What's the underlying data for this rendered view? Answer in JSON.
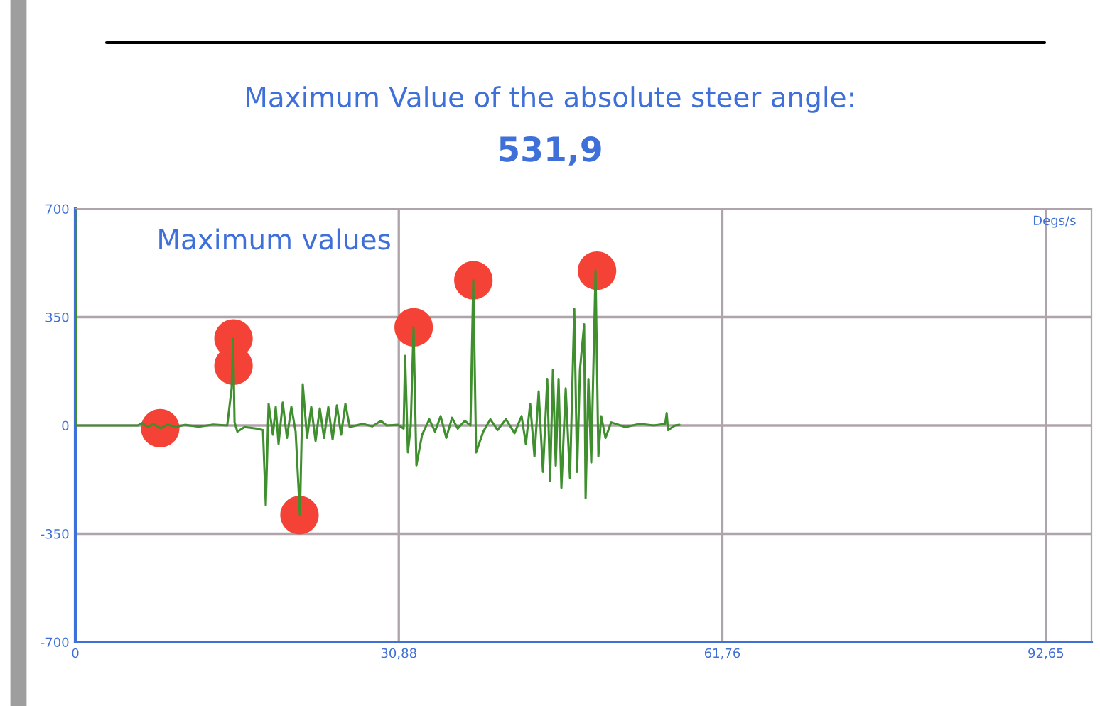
{
  "chart_data": {
    "type": "line",
    "title": "Maximum Value of the absolute steer angle:",
    "subtitle": "531,9",
    "ylabel": "Degs/s",
    "annotations": [
      "Maximum values"
    ],
    "xlim": [
      0,
      97
    ],
    "ylim": [
      -700,
      700
    ],
    "xticks": [
      {
        "value": 0,
        "label": "0"
      },
      {
        "value": 30.88,
        "label": "30,88"
      },
      {
        "value": 61.76,
        "label": "61,76"
      },
      {
        "value": 92.65,
        "label": "92,65"
      }
    ],
    "yticks": [
      -700,
      -350,
      0,
      350,
      700
    ],
    "grid": true,
    "legend": false,
    "series": [
      {
        "color": "#3f8f2f",
        "line_style": "solid",
        "marker": "none",
        "x": [
          0,
          0.07,
          5.97,
          6.38,
          6.92,
          7.46,
          8.14,
          8.82,
          9.63,
          10.45,
          11.8,
          13.16,
          14.5,
          14.92,
          15.06,
          15.2,
          15.47,
          16.15,
          17.23,
          17.91,
          18.18,
          18.45,
          18.86,
          19.13,
          19.4,
          19.8,
          20.2,
          20.62,
          21.03,
          21.44,
          21.71,
          22.12,
          22.52,
          22.93,
          23.34,
          23.74,
          24.15,
          24.56,
          24.97,
          25.37,
          25.78,
          26.19,
          27.41,
          28.36,
          29.17,
          29.72,
          30.8,
          31.34,
          31.48,
          31.75,
          32.02,
          32.29,
          32.56,
          33.1,
          33.79,
          34.33,
          34.87,
          35.41,
          35.96,
          36.5,
          37.18,
          37.72,
          37.99,
          38.26,
          38.94,
          39.62,
          40.3,
          41.11,
          41.93,
          42.6,
          43.01,
          43.42,
          43.83,
          44.23,
          44.64,
          45.05,
          45.32,
          45.59,
          45.86,
          46.13,
          46.4,
          46.81,
          47.22,
          47.63,
          47.9,
          48.17,
          48.57,
          48.71,
          48.98,
          49.25,
          49.66,
          49.93,
          50.2,
          50.61,
          51.15,
          52.51,
          53.87,
          55.22,
          56.31,
          56.45,
          56.58,
          57.26,
          57.67
        ],
        "values": [
          700,
          0,
          0,
          8,
          -5,
          5,
          -9,
          3,
          -5,
          2,
          -4,
          3,
          0,
          120,
          281,
          10,
          -20,
          -5,
          -10,
          -15,
          -258,
          70,
          -30,
          60,
          -60,
          74,
          -40,
          60,
          -20,
          -290,
          133,
          -40,
          60,
          -50,
          55,
          -40,
          60,
          -45,
          65,
          -30,
          70,
          -5,
          5,
          -3,
          15,
          0,
          2,
          -10,
          225,
          -87,
          0,
          317,
          -129,
          -30,
          20,
          -20,
          30,
          -40,
          25,
          -10,
          15,
          0,
          469,
          -87,
          -20,
          20,
          -15,
          20,
          -25,
          30,
          -60,
          70,
          -100,
          110,
          -150,
          150,
          -180,
          180,
          -130,
          150,
          -202,
          120,
          -170,
          377,
          -150,
          180,
          327,
          -235,
          150,
          -120,
          500,
          -100,
          30,
          -40,
          10,
          -5,
          5,
          0,
          5,
          40,
          -15,
          0,
          2
        ]
      },
      {
        "type": "scatter",
        "color": "#f44336",
        "marker": "circle",
        "x": [
          8.1,
          15.1,
          15.1,
          21.4,
          32.3,
          38.0,
          49.8
        ],
        "values": [
          -9,
          193,
          281,
          -290,
          317,
          469,
          500
        ]
      }
    ]
  }
}
